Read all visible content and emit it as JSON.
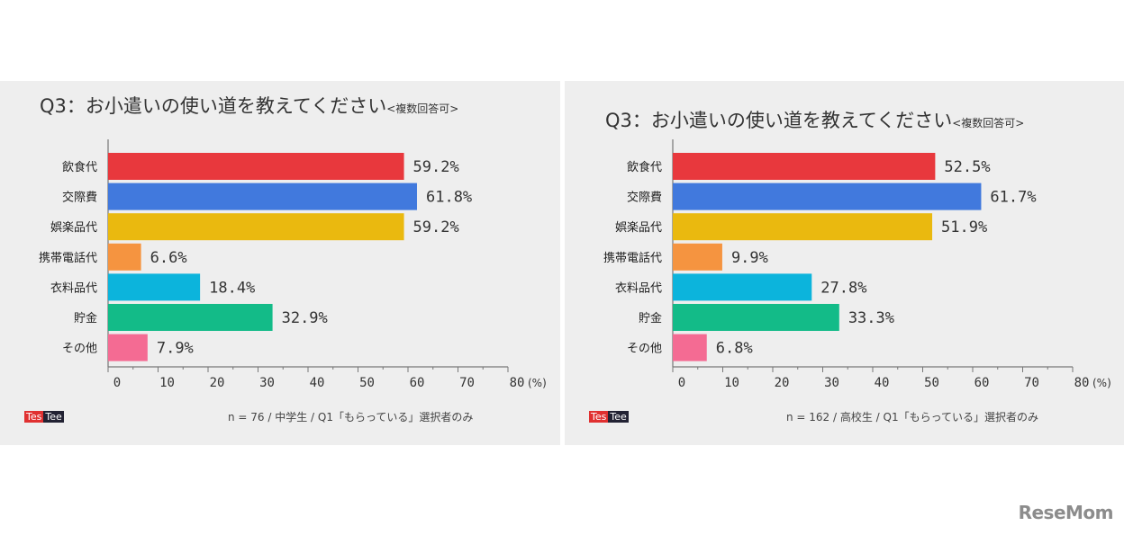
{
  "brand": "ReseMom",
  "panels": [
    {
      "title": "Q3：お小遣いの使い道を教えてください",
      "subtitle": "<複数回答可>",
      "logo_a": "Tes",
      "logo_b": "Tee",
      "note": "n = 76 /  中学生 /   Q1「もらっている」選択者のみ"
    },
    {
      "title": "Q3：お小遣いの使い道を教えてください",
      "subtitle": "<複数回答可>",
      "logo_a": "Tes",
      "logo_b": "Tee",
      "note": "n = 162 / 高校生 /   Q1「もらっている」選択者のみ"
    }
  ],
  "chart_data": [
    {
      "type": "bar",
      "orientation": "horizontal",
      "title": "Q3：お小遣いの使い道を教えてください<複数回答可>",
      "categories": [
        "飲食代",
        "交際費",
        "娯楽品代",
        "携帯電話代",
        "衣料品代",
        "貯金",
        "その他"
      ],
      "values": [
        59.2,
        61.8,
        59.2,
        6.6,
        18.4,
        32.9,
        7.9
      ],
      "value_labels": [
        "59.2%",
        "61.8%",
        "59.2%",
        "6.6%",
        "18.4%",
        "32.9%",
        "7.9%"
      ],
      "colors": [
        "#e8383d",
        "#4179dd",
        "#eab90f",
        "#f59440",
        "#0cb4dc",
        "#13bb88",
        "#f46b93"
      ],
      "xlim": [
        0,
        80
      ],
      "xticks": [
        0,
        10,
        20,
        30,
        40,
        50,
        60,
        70,
        80
      ],
      "xunit": "(%)",
      "grid": false
    },
    {
      "type": "bar",
      "orientation": "horizontal",
      "title": "Q3：お小遣いの使い道を教えてください<複数回答可>",
      "categories": [
        "飲食代",
        "交際費",
        "娯楽品代",
        "携帯電話代",
        "衣料品代",
        "貯金",
        "その他"
      ],
      "values": [
        52.5,
        61.7,
        51.9,
        9.9,
        27.8,
        33.3,
        6.8
      ],
      "value_labels": [
        "52.5%",
        "61.7%",
        "51.9%",
        "9.9%",
        "27.8%",
        "33.3%",
        "6.8%"
      ],
      "colors": [
        "#e8383d",
        "#4179dd",
        "#eab90f",
        "#f59440",
        "#0cb4dc",
        "#13bb88",
        "#f46b93"
      ],
      "xlim": [
        0,
        80
      ],
      "xticks": [
        0,
        10,
        20,
        30,
        40,
        50,
        60,
        70,
        80
      ],
      "xunit": "(%)",
      "grid": false
    }
  ]
}
